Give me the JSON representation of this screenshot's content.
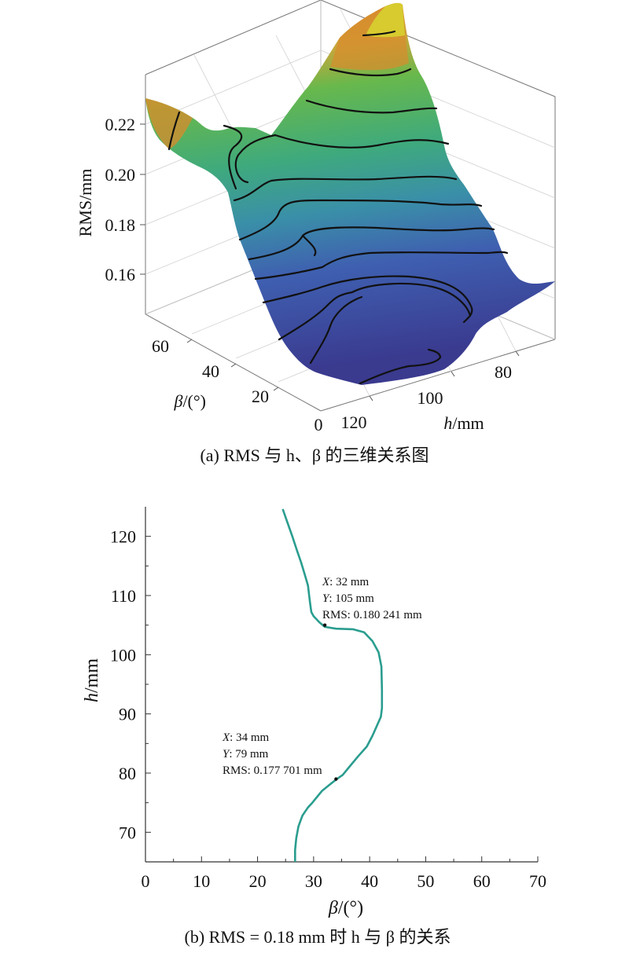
{
  "chart_data": [
    {
      "type": "surface3d",
      "caption": "(a) RMS 与 h、β 的三维关系图",
      "zlabel": "RMS/mm",
      "zlim": [
        0.145,
        0.24
      ],
      "zticks": [
        "0.16",
        "0.18",
        "0.20",
        "0.22"
      ],
      "xlabel_italic": "β",
      "xlabel_rest": "/(°)",
      "xticks": [
        "0",
        "20",
        "40",
        "60"
      ],
      "ylabel_italic": "h",
      "ylabel_rest": "/mm",
      "yticks": [
        "120",
        "100",
        "80"
      ],
      "colormap": [
        "#3a3a8f",
        "#3f5fb0",
        "#3a8fa8",
        "#3faa7c",
        "#68b84c",
        "#c9a63a",
        "#d98b2c",
        "#d7d230"
      ],
      "surface_corner_values": {
        "beta_max_h_min_peak": 0.241,
        "beta_max_h_max": 0.224,
        "low_region_min": 0.146
      }
    },
    {
      "type": "line",
      "caption": "(b) RMS = 0.18 mm 时 h 与 β 的关系",
      "xlabel_italic": "β",
      "xlabel_rest": "/(°)",
      "ylabel_italic": "h",
      "ylabel_rest": "/mm",
      "xlim": [
        0,
        70
      ],
      "ylim": [
        65,
        125
      ],
      "xticks": [
        0,
        10,
        20,
        30,
        40,
        50,
        60,
        70
      ],
      "yticks": [
        70,
        80,
        90,
        100,
        110,
        120
      ],
      "line_color": "#2a9d8f",
      "series": [
        {
          "x": [
            24.5,
            25.3,
            26.2,
            27.0,
            27.8,
            28.4,
            29.0,
            29.2,
            29.4,
            29.6,
            30.0,
            31.0,
            32.0,
            34.0,
            37.0,
            39.0,
            40.5,
            41.6,
            42.1,
            42.2,
            42.2,
            42.0,
            41.3,
            40.5,
            39.5,
            38.0,
            36.5,
            35.2,
            34.0,
            32.8,
            31.5,
            30.3,
            29.7,
            29.0,
            28.0,
            27.3,
            26.9,
            26.7,
            26.7
          ],
          "y": [
            124.6,
            122.4,
            120.0,
            117.7,
            115.5,
            113.6,
            111.7,
            110.0,
            108.5,
            107.2,
            106.5,
            105.5,
            104.7,
            104.4,
            104.3,
            103.8,
            102.3,
            100.4,
            98.0,
            94.0,
            91.0,
            89.5,
            88.0,
            86.3,
            84.5,
            82.9,
            81.2,
            79.7,
            78.9,
            78.0,
            77.0,
            75.6,
            74.9,
            74.2,
            72.8,
            71.0,
            69.0,
            67.0,
            65.0
          ]
        }
      ],
      "annotations": [
        {
          "x": 32,
          "y": 105,
          "line1_var": "X",
          "line1_val": ": 32 mm",
          "line2_var": "Y",
          "line2_val": ": 105 mm",
          "line3": "RMS: 0.180 241 mm"
        },
        {
          "x": 34,
          "y": 79,
          "line1_var": "X",
          "line1_val": ": 34 mm",
          "line2_var": "Y",
          "line2_val": ": 79 mm",
          "line3": "RMS: 0.177 701 mm"
        }
      ]
    }
  ]
}
